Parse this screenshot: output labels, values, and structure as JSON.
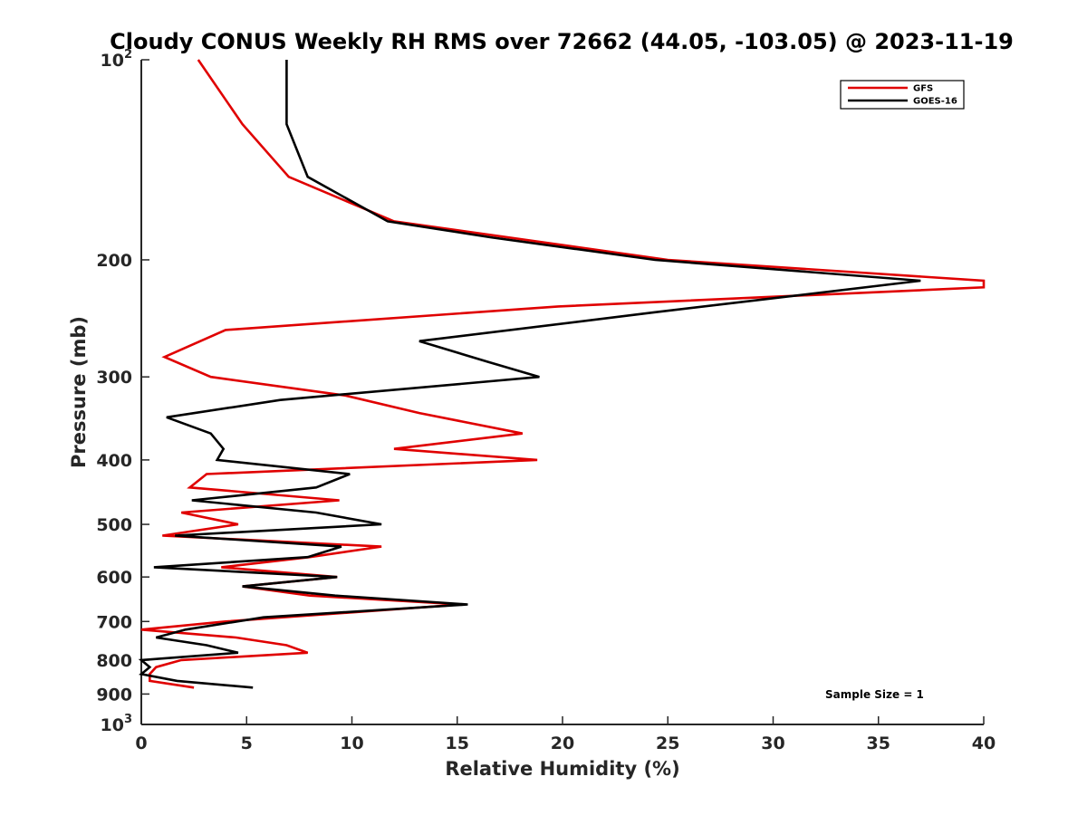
{
  "chart_data": {
    "type": "line",
    "title": "Cloudy CONUS Weekly RH RMS over 72662 (44.05, -103.05) @ 2023-11-19",
    "xlabel": "Relative Humidity (%)",
    "ylabel": "Pressure (mb)",
    "xlim": [
      0,
      40
    ],
    "ylim": [
      100,
      1000
    ],
    "y_scale": "log",
    "y_reversed": true,
    "grid": false,
    "legend_position": "top-right",
    "x_ticks": [
      0,
      5,
      10,
      15,
      20,
      25,
      30,
      35,
      40
    ],
    "x_tick_labels": [
      "0",
      "5",
      "10",
      "15",
      "20",
      "25",
      "30",
      "35",
      "40"
    ],
    "y_ticks": [
      {
        "value": 100,
        "base": "10",
        "exp": "2"
      },
      {
        "value": 200,
        "label": "200"
      },
      {
        "value": 300,
        "label": "300"
      },
      {
        "value": 400,
        "label": "400"
      },
      {
        "value": 500,
        "label": "500"
      },
      {
        "value": 600,
        "label": "600"
      },
      {
        "value": 700,
        "label": "700"
      },
      {
        "value": 800,
        "label": "800"
      },
      {
        "value": 900,
        "label": "900"
      },
      {
        "value": 1000,
        "base": "10",
        "exp": "3"
      }
    ],
    "annotation": "Sample Size = 1",
    "series": [
      {
        "name": "GFS",
        "color": "#e00000",
        "points": [
          [
            2.7,
            100
          ],
          [
            4.8,
            125
          ],
          [
            7.0,
            150
          ],
          [
            12.0,
            175
          ],
          [
            25.0,
            200
          ],
          [
            40.0,
            215
          ],
          [
            40.0,
            220
          ],
          [
            19.8,
            235
          ],
          [
            4.0,
            255
          ],
          [
            1.1,
            280
          ],
          [
            3.3,
            300
          ],
          [
            9.7,
            320
          ],
          [
            13.2,
            340
          ],
          [
            18.1,
            365
          ],
          [
            12.0,
            385
          ],
          [
            18.8,
            400
          ],
          [
            3.1,
            420
          ],
          [
            2.3,
            440
          ],
          [
            9.4,
            460
          ],
          [
            1.9,
            480
          ],
          [
            4.6,
            500
          ],
          [
            1.0,
            520
          ],
          [
            11.4,
            540
          ],
          [
            8.0,
            560
          ],
          [
            3.8,
            580
          ],
          [
            9.3,
            600
          ],
          [
            4.8,
            620
          ],
          [
            8.0,
            640
          ],
          [
            15.2,
            660
          ],
          [
            4.0,
            700
          ],
          [
            0.0,
            720
          ],
          [
            4.5,
            740
          ],
          [
            6.9,
            760
          ],
          [
            7.9,
            780
          ],
          [
            1.9,
            800
          ],
          [
            0.7,
            820
          ],
          [
            0.4,
            840
          ],
          [
            0.4,
            860
          ],
          [
            2.5,
            880
          ]
        ]
      },
      {
        "name": "GOES-16",
        "color": "#000000",
        "points": [
          [
            6.9,
            100
          ],
          [
            6.9,
            125
          ],
          [
            7.9,
            150
          ],
          [
            11.7,
            175
          ],
          [
            16.6,
            185
          ],
          [
            24.4,
            200
          ],
          [
            37.0,
            215
          ],
          [
            24.3,
            240
          ],
          [
            13.2,
            265
          ],
          [
            16.5,
            285
          ],
          [
            18.9,
            300
          ],
          [
            6.6,
            325
          ],
          [
            1.2,
            345
          ],
          [
            3.3,
            365
          ],
          [
            3.9,
            385
          ],
          [
            3.6,
            400
          ],
          [
            9.9,
            420
          ],
          [
            8.3,
            440
          ],
          [
            2.4,
            460
          ],
          [
            8.3,
            480
          ],
          [
            11.4,
            500
          ],
          [
            1.6,
            520
          ],
          [
            9.5,
            540
          ],
          [
            7.9,
            560
          ],
          [
            0.6,
            580
          ],
          [
            9.3,
            600
          ],
          [
            4.8,
            620
          ],
          [
            9.2,
            640
          ],
          [
            15.5,
            660
          ],
          [
            5.8,
            690
          ],
          [
            2.1,
            720
          ],
          [
            0.7,
            740
          ],
          [
            3.1,
            760
          ],
          [
            4.6,
            780
          ],
          [
            0.0,
            800
          ],
          [
            0.4,
            820
          ],
          [
            0.0,
            840
          ],
          [
            1.7,
            860
          ],
          [
            5.3,
            880
          ]
        ]
      }
    ]
  }
}
